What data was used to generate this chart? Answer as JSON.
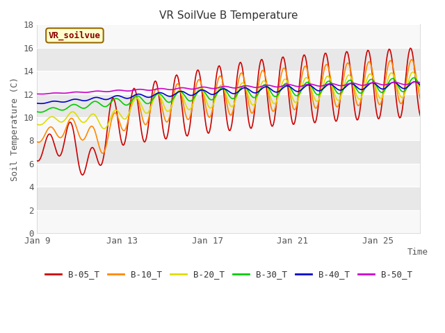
{
  "title": "VR SoilVue B Temperature",
  "ylabel": "Soil Temperature (C)",
  "xlabel": "Time",
  "ylim": [
    0,
    18
  ],
  "yticks": [
    0,
    2,
    4,
    6,
    8,
    10,
    12,
    14,
    16,
    18
  ],
  "legend_label": "VR_soilvue",
  "series_colors": {
    "B-05_T": "#cc0000",
    "B-10_T": "#ff8800",
    "B-20_T": "#dddd00",
    "B-30_T": "#00cc00",
    "B-40_T": "#0000cc",
    "B-50_T": "#cc00cc"
  },
  "band_dark": "#e8e8e8",
  "band_light": "#f8f8f8",
  "fig_bg": "#ffffff",
  "xtick_days": [
    0,
    4,
    8,
    12,
    16
  ],
  "xtick_labels": [
    "Jan 9",
    "Jan 13",
    "Jan 17",
    "Jan 21",
    "Jan 25"
  ],
  "xlim": [
    0,
    18
  ],
  "n_points": 432,
  "legend_entries": [
    "B-05_T",
    "B-10_T",
    "B-20_T",
    "B-30_T",
    "B-40_T",
    "B-50_T"
  ]
}
